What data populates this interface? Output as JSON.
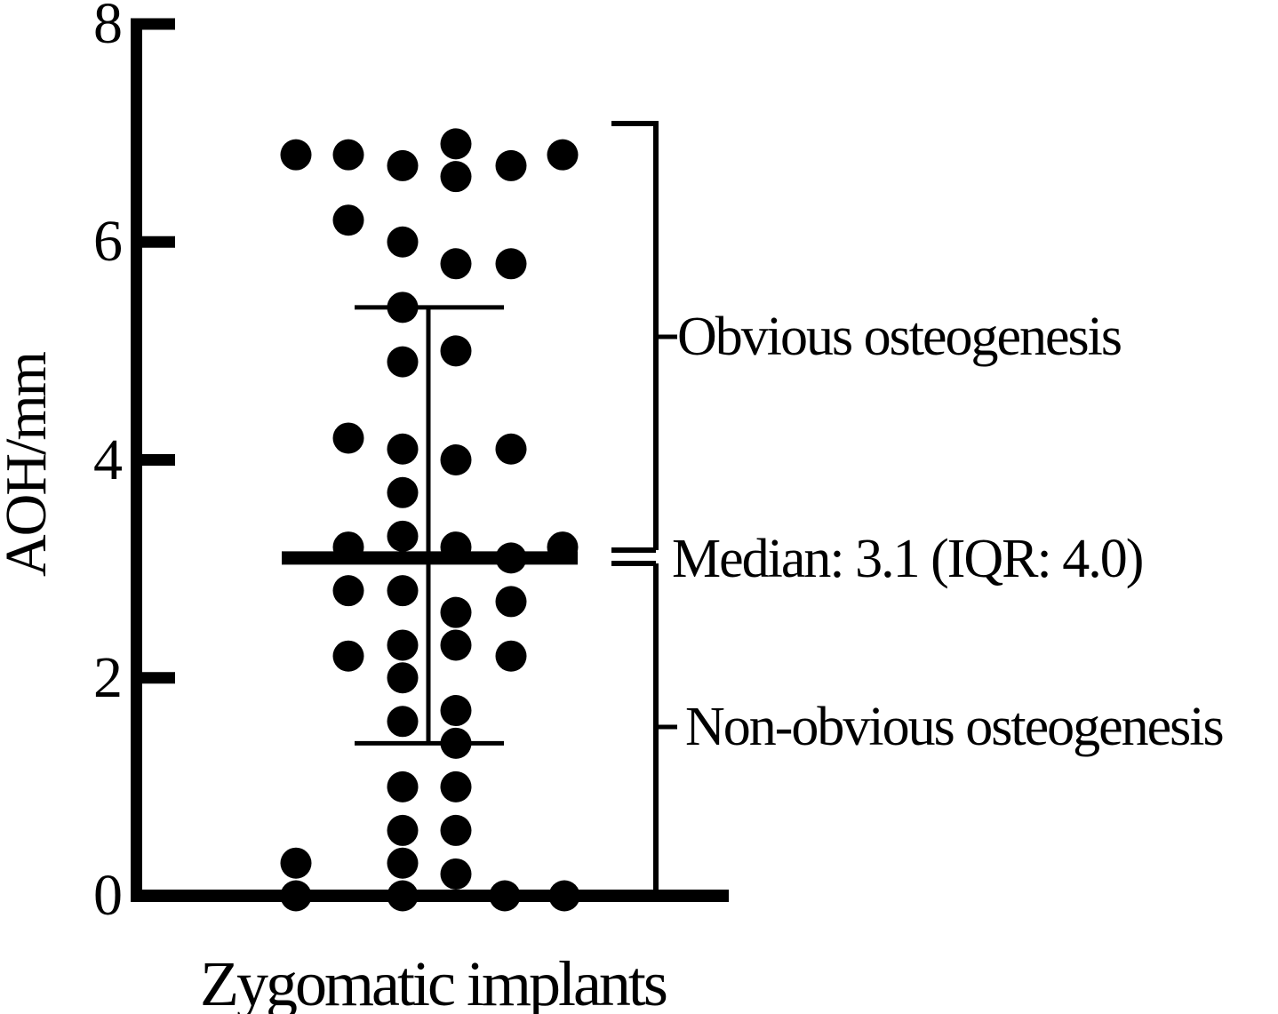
{
  "figure": {
    "background": "#ffffff",
    "ink": "#000000"
  },
  "chart_data": {
    "type": "scatter",
    "subtype": "dot-strip-plot",
    "title": "",
    "xlabel": "Zygomatic implants",
    "ylabel": "AOH/mm",
    "ylim": [
      0,
      8
    ],
    "yticks": [
      0,
      2,
      4,
      6,
      8
    ],
    "categories": [
      "Zygomatic implants"
    ],
    "grid": false,
    "median": 3.1,
    "iqr": 4.0,
    "q1": 1.4,
    "q3": 5.4,
    "annotations": {
      "obvious": "Obvious osteogenesis",
      "median_label": "Median: 3.1 (IQR: 4.0)",
      "non_obvious": "Non-obvious osteogenesis"
    },
    "points_jx_value": [
      [
        333,
        6.8
      ],
      [
        392,
        6.8
      ],
      [
        453,
        6.7
      ],
      [
        513,
        6.9
      ],
      [
        513,
        6.6
      ],
      [
        575,
        6.7
      ],
      [
        633,
        6.8
      ],
      [
        392,
        6.2
      ],
      [
        453,
        6.0
      ],
      [
        513,
        5.8
      ],
      [
        575,
        5.8
      ],
      [
        453,
        5.4
      ],
      [
        513,
        5.0
      ],
      [
        453,
        4.9
      ],
      [
        392,
        4.2
      ],
      [
        453,
        4.1
      ],
      [
        513,
        4.0
      ],
      [
        575,
        4.1
      ],
      [
        453,
        3.7
      ],
      [
        453,
        3.3
      ],
      [
        392,
        3.2
      ],
      [
        513,
        3.2
      ],
      [
        633,
        3.2
      ],
      [
        575,
        3.1
      ],
      [
        392,
        2.8
      ],
      [
        453,
        2.8
      ],
      [
        575,
        2.7
      ],
      [
        513,
        2.6
      ],
      [
        513,
        2.3
      ],
      [
        453,
        2.3
      ],
      [
        575,
        2.2
      ],
      [
        392,
        2.2
      ],
      [
        453,
        2.0
      ],
      [
        513,
        1.7
      ],
      [
        453,
        1.6
      ],
      [
        513,
        1.4
      ],
      [
        453,
        1.0
      ],
      [
        513,
        1.0
      ],
      [
        453,
        0.6
      ],
      [
        513,
        0.6
      ],
      [
        453,
        0.3
      ],
      [
        333,
        0.3
      ],
      [
        513,
        0.2
      ],
      [
        333,
        0.0
      ],
      [
        453,
        0.0
      ],
      [
        568,
        0.0
      ],
      [
        635,
        0.0
      ]
    ]
  }
}
